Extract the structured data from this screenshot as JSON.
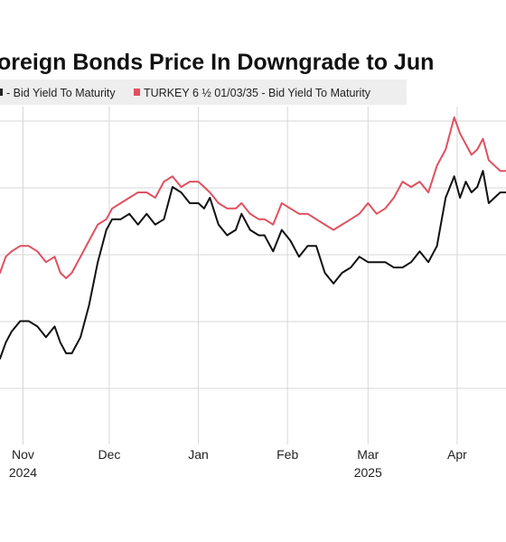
{
  "chart_data": {
    "type": "line",
    "title": "Foreign Bonds Price In Downgrade to Junk",
    "title_visible": "oreign Bonds Price In Downgrade to Jun",
    "legend": {
      "items": [
        {
          "label": "- Bid Yield To Maturity",
          "color": "#222222"
        },
        {
          "label": "TURKEY 6 ½  01/03/35 - Bid Yield To Maturity",
          "color": "#e0505f"
        }
      ],
      "placement": "top"
    },
    "x_ticks": [
      {
        "label": "Nov",
        "year": "2024",
        "date": "2024-11-01"
      },
      {
        "label": "Dec",
        "year": "",
        "date": "2024-12-01"
      },
      {
        "label": "Jan",
        "year": "",
        "date": "2025-01-01"
      },
      {
        "label": "Feb",
        "year": "",
        "date": "2025-02-01"
      },
      {
        "label": "Mar",
        "year": "2025",
        "date": "2025-03-01"
      },
      {
        "label": "Apr",
        "year": "",
        "date": "2025-04-01"
      }
    ],
    "x_range": [
      "2024-10-24",
      "2025-04-18"
    ],
    "y_axis_labels_visible": false,
    "ylim": [
      -1.6,
      4.7
    ],
    "grid": true,
    "series": [
      {
        "color": "#111111",
        "x": [
          "2024-10-24",
          "2024-10-26",
          "2024-10-28",
          "2024-10-31",
          "2024-11-03",
          "2024-11-06",
          "2024-11-09",
          "2024-11-12",
          "2024-11-14",
          "2024-11-16",
          "2024-11-18",
          "2024-11-21",
          "2024-11-24",
          "2024-11-27",
          "2024-11-30",
          "2024-12-02",
          "2024-12-05",
          "2024-12-08",
          "2024-12-11",
          "2024-12-14",
          "2024-12-17",
          "2024-12-20",
          "2024-12-23",
          "2024-12-26",
          "2024-12-29",
          "2025-01-01",
          "2025-01-03",
          "2025-01-05",
          "2025-01-08",
          "2025-01-11",
          "2025-01-14",
          "2025-01-16",
          "2025-01-19",
          "2025-01-22",
          "2025-01-24",
          "2025-01-27",
          "2025-01-30",
          "2025-02-02",
          "2025-02-05",
          "2025-02-08",
          "2025-02-11",
          "2025-02-14",
          "2025-02-17",
          "2025-02-20",
          "2025-02-23",
          "2025-02-26",
          "2025-03-01",
          "2025-03-04",
          "2025-03-07",
          "2025-03-10",
          "2025-03-13",
          "2025-03-16",
          "2025-03-19",
          "2025-03-22",
          "2025-03-25",
          "2025-03-28",
          "2025-03-31",
          "2025-04-02",
          "2025-04-04",
          "2025-04-06",
          "2025-04-08",
          "2025-04-10",
          "2025-04-12",
          "2025-04-14",
          "2025-04-16",
          "2025-04-18"
        ],
        "y": [
          0.0,
          0.3,
          0.5,
          0.7,
          0.7,
          0.6,
          0.4,
          0.6,
          0.3,
          0.1,
          0.1,
          0.4,
          1.0,
          1.8,
          2.4,
          2.6,
          2.6,
          2.7,
          2.5,
          2.7,
          2.5,
          2.6,
          3.2,
          3.1,
          2.9,
          2.9,
          2.8,
          3.0,
          2.5,
          2.3,
          2.4,
          2.7,
          2.4,
          2.3,
          2.3,
          2.0,
          2.4,
          2.2,
          1.9,
          2.1,
          2.1,
          1.6,
          1.4,
          1.6,
          1.7,
          1.9,
          1.8,
          1.8,
          1.8,
          1.7,
          1.7,
          1.8,
          2.0,
          1.8,
          2.1,
          3.0,
          3.4,
          3.0,
          3.3,
          3.1,
          3.2,
          3.5,
          2.9,
          3.0,
          3.1,
          3.1
        ]
      },
      {
        "color": "#e0505f",
        "x": [
          "2024-10-24",
          "2024-10-26",
          "2024-10-28",
          "2024-10-31",
          "2024-11-03",
          "2024-11-06",
          "2024-11-09",
          "2024-11-12",
          "2024-11-14",
          "2024-11-16",
          "2024-11-18",
          "2024-11-21",
          "2024-11-24",
          "2024-11-27",
          "2024-11-30",
          "2024-12-02",
          "2024-12-05",
          "2024-12-08",
          "2024-12-11",
          "2024-12-14",
          "2024-12-17",
          "2024-12-20",
          "2024-12-23",
          "2024-12-26",
          "2024-12-29",
          "2025-01-01",
          "2025-01-03",
          "2025-01-05",
          "2025-01-08",
          "2025-01-11",
          "2025-01-14",
          "2025-01-16",
          "2025-01-19",
          "2025-01-22",
          "2025-01-24",
          "2025-01-27",
          "2025-01-30",
          "2025-02-02",
          "2025-02-05",
          "2025-02-08",
          "2025-02-11",
          "2025-02-14",
          "2025-02-17",
          "2025-02-20",
          "2025-02-23",
          "2025-02-26",
          "2025-03-01",
          "2025-03-04",
          "2025-03-07",
          "2025-03-10",
          "2025-03-13",
          "2025-03-16",
          "2025-03-19",
          "2025-03-22",
          "2025-03-25",
          "2025-03-28",
          "2025-03-31",
          "2025-04-02",
          "2025-04-04",
          "2025-04-06",
          "2025-04-08",
          "2025-04-10",
          "2025-04-12",
          "2025-04-14",
          "2025-04-16",
          "2025-04-18"
        ],
        "y": [
          1.6,
          1.9,
          2.0,
          2.1,
          2.1,
          2.0,
          1.8,
          1.9,
          1.6,
          1.5,
          1.6,
          1.9,
          2.2,
          2.5,
          2.6,
          2.8,
          2.9,
          3.0,
          3.1,
          3.1,
          3.0,
          3.3,
          3.4,
          3.2,
          3.3,
          3.3,
          3.2,
          3.1,
          2.9,
          2.8,
          2.8,
          2.9,
          2.7,
          2.6,
          2.6,
          2.5,
          2.9,
          2.8,
          2.7,
          2.7,
          2.6,
          2.5,
          2.4,
          2.5,
          2.6,
          2.7,
          2.9,
          2.7,
          2.8,
          3.0,
          3.3,
          3.2,
          3.3,
          3.1,
          3.6,
          3.9,
          4.5,
          4.2,
          4.0,
          3.8,
          3.9,
          4.1,
          3.7,
          3.6,
          3.5,
          3.5
        ]
      }
    ]
  }
}
